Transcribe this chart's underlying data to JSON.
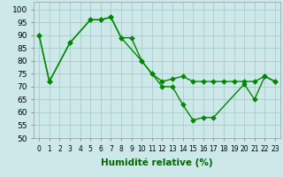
{
  "curve1_x": [
    0,
    1,
    3,
    5,
    6,
    7,
    8,
    10,
    11,
    12,
    13,
    14,
    15,
    16,
    17,
    20,
    21,
    22,
    23
  ],
  "curve1_y": [
    90,
    72,
    87,
    96,
    96,
    97,
    89,
    80,
    75,
    70,
    70,
    63,
    57,
    58,
    58,
    71,
    65,
    74,
    72
  ],
  "curve2_x": [
    0,
    1,
    3,
    5,
    6,
    7,
    8,
    9,
    10,
    11,
    12,
    13,
    14,
    15,
    16,
    17,
    18,
    19,
    20,
    21,
    22,
    23
  ],
  "curve2_y": [
    90,
    72,
    87,
    96,
    96,
    97,
    89,
    89,
    80,
    75,
    72,
    73,
    74,
    72,
    72,
    72,
    72,
    72,
    72,
    72,
    74,
    72
  ],
  "background_color": "#cce8e8",
  "grid_color": "#aacccc",
  "line_color": "#008800",
  "ylim": [
    50,
    103
  ],
  "yticks": [
    50,
    55,
    60,
    65,
    70,
    75,
    80,
    85,
    90,
    95,
    100
  ],
  "xlim": [
    -0.5,
    23.5
  ],
  "xticks": [
    0,
    1,
    2,
    3,
    4,
    5,
    6,
    7,
    8,
    9,
    10,
    11,
    12,
    13,
    14,
    15,
    16,
    17,
    18,
    19,
    20,
    21,
    22,
    23
  ],
  "xlabel": "Humidité relative (%)",
  "xlabel_color": "#006600",
  "xlabel_fontsize": 7.5,
  "tick_fontsize": 5.5,
  "ytick_fontsize": 6.5
}
